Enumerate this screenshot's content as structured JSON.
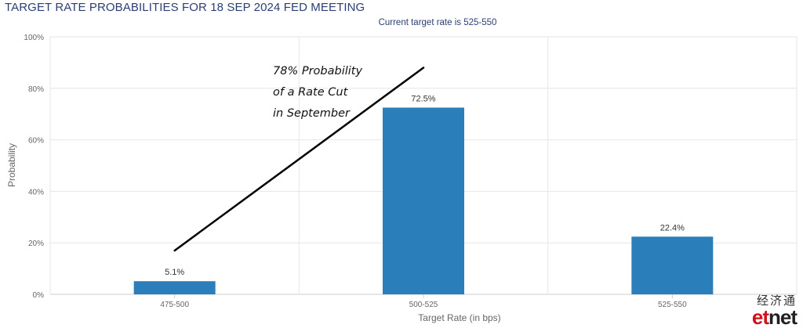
{
  "title": "TARGET RATE PROBABILITIES FOR 18 SEP 2024 FED MEETING",
  "subtitle": "Current target rate is 525-550",
  "annotation": {
    "line1": "78% Probability",
    "line2": "of a Rate Cut",
    "line3": "in September"
  },
  "watermark": {
    "cn": "经济通",
    "et": "et",
    "net": "net"
  },
  "colors": {
    "bar": "#2a7fba",
    "grid": "#e6e6e6",
    "axis_text": "#666666",
    "title": "#2b3f73"
  },
  "chart_data": {
    "type": "bar",
    "categories": [
      "475-500",
      "500-525",
      "525-550"
    ],
    "values": [
      5.1,
      72.5,
      22.4
    ],
    "data_labels": [
      "5.1%",
      "72.5%",
      "22.4%"
    ],
    "yticks": [
      0,
      20,
      40,
      60,
      80,
      100
    ],
    "ytick_labels": [
      "0%",
      "20%",
      "40%",
      "60%",
      "80%",
      "100%"
    ],
    "ylim": [
      0,
      100
    ],
    "xlabel": "Target Rate (in bps)",
    "ylabel": "Probability",
    "grid": true,
    "trend_arrow": {
      "from_value": 17,
      "to_value": 88
    }
  }
}
